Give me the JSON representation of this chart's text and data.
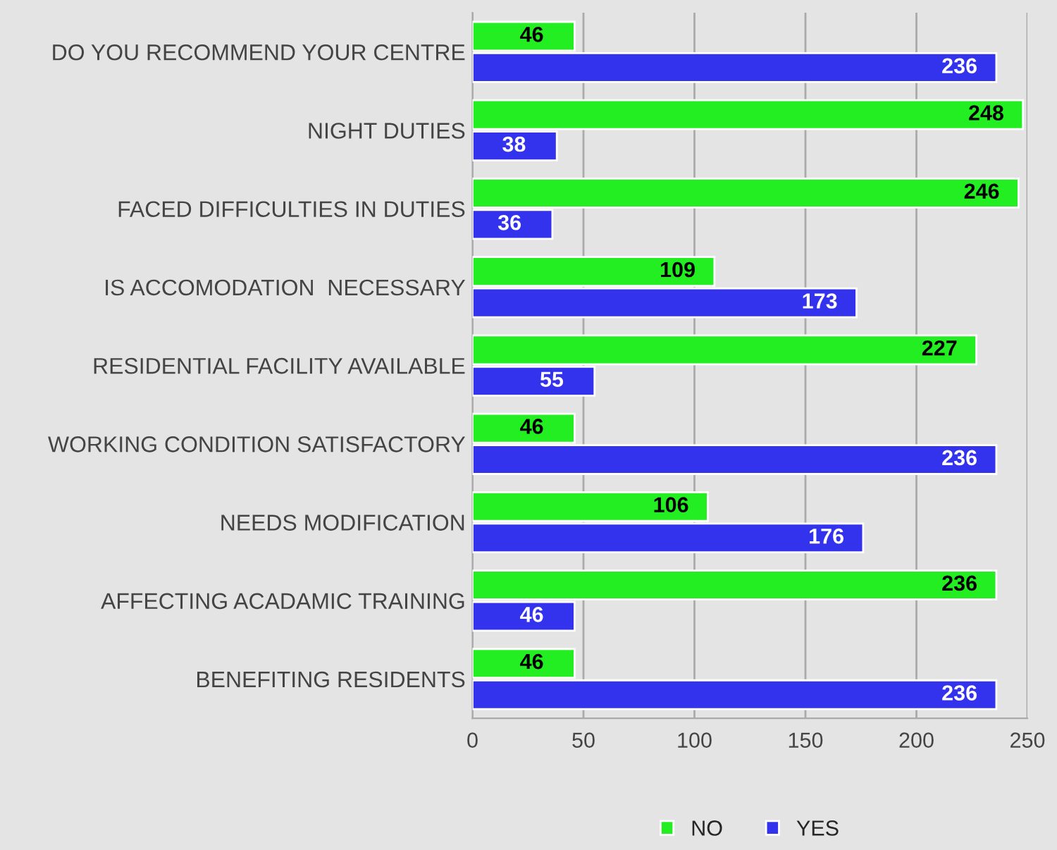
{
  "chart_data": {
    "type": "bar",
    "orientation": "horizontal",
    "categories": [
      "DO YOU RECOMMEND YOUR CENTRE",
      "NIGHT DUTIES",
      "FACED DIFFICULTIES IN DUTIES",
      "IS ACCOMODATION  NECESSARY",
      "RESIDENTIAL FACILITY AVAILABLE",
      "WORKING CONDITION SATISFACTORY",
      "NEEDS MODIFICATION",
      "AFFECTING ACADAMIC TRAINING",
      "BENEFITING RESIDENTS"
    ],
    "series": [
      {
        "name": "NO",
        "color": "#22ee22",
        "values": [
          46,
          248,
          246,
          109,
          227,
          46,
          106,
          236,
          46
        ]
      },
      {
        "name": "YES",
        "color": "#3333ee",
        "values": [
          236,
          38,
          36,
          173,
          55,
          236,
          176,
          46,
          236
        ]
      }
    ],
    "xlim": [
      0,
      250
    ],
    "xticks": [
      0,
      50,
      100,
      150,
      200,
      250
    ],
    "grid": "x",
    "legend": "bottom",
    "data_labels": true
  }
}
